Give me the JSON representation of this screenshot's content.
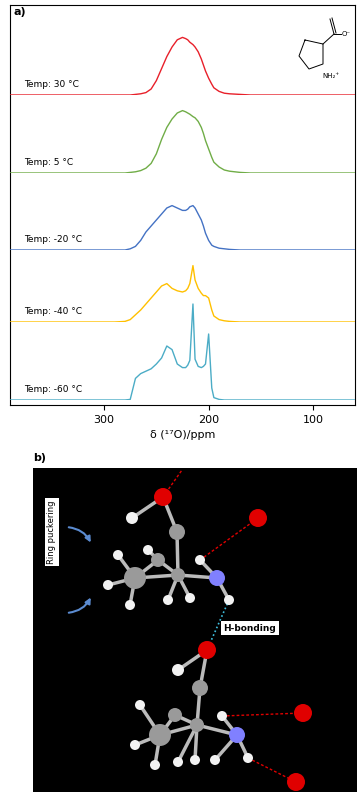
{
  "chart_data": {
    "type": "line",
    "panel_label": "a)",
    "xlabel": "δ (¹⁷O)/ppm",
    "xlim": [
      390,
      60
    ],
    "xticks": [
      300,
      200,
      100
    ],
    "ylim": [
      0,
      1
    ],
    "tick_labels": "x",
    "x": [
      390,
      290,
      280,
      275,
      270,
      265,
      260,
      255,
      250,
      245,
      240,
      235,
      230,
      225,
      222,
      220,
      218,
      215,
      213,
      210,
      207,
      205,
      203,
      200,
      197,
      195,
      190,
      185,
      180,
      170,
      160,
      60
    ],
    "series": [
      {
        "name": "Temp: 30 °C",
        "color": "#e8202a",
        "values": [
          0,
          0,
          0,
          0,
          0.005,
          0.01,
          0.02,
          0.05,
          0.12,
          0.22,
          0.32,
          0.4,
          0.46,
          0.48,
          0.47,
          0.46,
          0.44,
          0.42,
          0.4,
          0.36,
          0.3,
          0.25,
          0.2,
          0.14,
          0.09,
          0.06,
          0.03,
          0.015,
          0.01,
          0.005,
          0,
          0
        ]
      },
      {
        "name": "Temp: 5 °C",
        "color": "#70ad47",
        "values": [
          0,
          0,
          0,
          0.005,
          0.01,
          0.02,
          0.04,
          0.08,
          0.16,
          0.28,
          0.38,
          0.45,
          0.5,
          0.52,
          0.51,
          0.5,
          0.49,
          0.47,
          0.46,
          0.43,
          0.38,
          0.33,
          0.27,
          0.2,
          0.13,
          0.09,
          0.05,
          0.025,
          0.015,
          0.005,
          0,
          0
        ]
      },
      {
        "name": "Temp: -20 °C",
        "color": "#4472c4",
        "values": [
          0,
          0,
          0,
          0.01,
          0.03,
          0.08,
          0.15,
          0.2,
          0.25,
          0.3,
          0.35,
          0.37,
          0.35,
          0.33,
          0.33,
          0.34,
          0.36,
          0.37,
          0.35,
          0.3,
          0.25,
          0.2,
          0.14,
          0.08,
          0.04,
          0.03,
          0.015,
          0.01,
          0.005,
          0,
          0,
          0
        ]
      },
      {
        "name": "Temp: -40 °C",
        "color": "#ffc000",
        "values": [
          0,
          0,
          0.005,
          0.02,
          0.06,
          0.1,
          0.15,
          0.2,
          0.25,
          0.3,
          0.32,
          0.28,
          0.26,
          0.25,
          0.26,
          0.28,
          0.32,
          0.47,
          0.35,
          0.28,
          0.24,
          0.22,
          0.22,
          0.2,
          0.1,
          0.05,
          0.02,
          0.01,
          0.005,
          0,
          0,
          0
        ]
      },
      {
        "name": "Temp: -60 °C",
        "color": "#4bacc6",
        "values": [
          0,
          0,
          0,
          0.005,
          0.18,
          0.22,
          0.24,
          0.26,
          0.3,
          0.35,
          0.45,
          0.42,
          0.3,
          0.27,
          0.27,
          0.29,
          0.33,
          0.8,
          0.34,
          0.28,
          0.27,
          0.28,
          0.3,
          0.55,
          0.1,
          0.02,
          0.005,
          0,
          0,
          0,
          0,
          0
        ]
      }
    ],
    "structure_labels": [
      "O⁻",
      "NH₂⁺"
    ]
  },
  "diagram": {
    "panel_label": "b)",
    "labels": [
      "Ring puckering",
      "H-bonding"
    ]
  }
}
